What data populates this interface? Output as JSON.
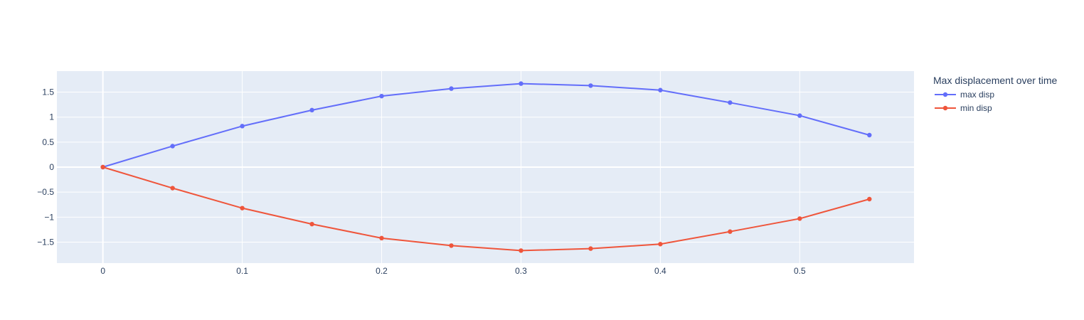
{
  "chart_data": {
    "type": "line",
    "title": "",
    "xlabel": "",
    "ylabel": "",
    "x": [
      0,
      0.05,
      0.1,
      0.15,
      0.2,
      0.25,
      0.3,
      0.35,
      0.4,
      0.45,
      0.5,
      0.55
    ],
    "series": [
      {
        "name": "max disp",
        "color": "#636efa",
        "values": [
          0,
          0.42,
          0.82,
          1.14,
          1.42,
          1.57,
          1.67,
          1.63,
          1.54,
          1.29,
          1.03,
          0.64
        ]
      },
      {
        "name": "min disp",
        "color": "#ef553b",
        "values": [
          0,
          -0.42,
          -0.82,
          -1.14,
          -1.42,
          -1.57,
          -1.67,
          -1.63,
          -1.54,
          -1.29,
          -1.03,
          -0.64
        ]
      }
    ],
    "xlim": [
      -0.033,
      0.582
    ],
    "ylim": [
      -1.92,
      1.92
    ],
    "xticks": [
      0,
      0.1,
      0.2,
      0.3,
      0.4,
      0.5
    ],
    "xtick_labels": [
      "0",
      "0.1",
      "0.2",
      "0.3",
      "0.4",
      "0.5"
    ],
    "yticks": [
      1.5,
      1,
      0.5,
      0,
      -0.5,
      -1,
      -1.5
    ],
    "ytick_labels": [
      "1.5",
      "1",
      "0.5",
      "0",
      "−0.5",
      "−1",
      "−1.5"
    ],
    "grid": true,
    "plot_background": "#e5ecf6",
    "legend": {
      "title": "Max displacement over time",
      "placement": "right"
    }
  }
}
